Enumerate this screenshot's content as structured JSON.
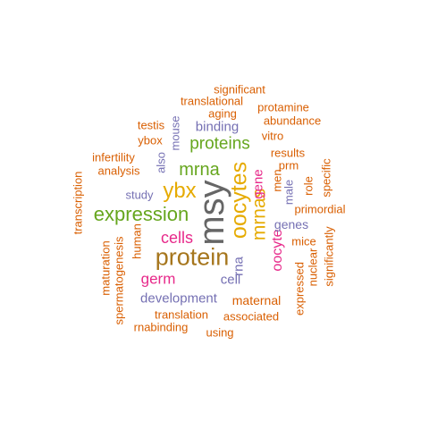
{
  "palette": {
    "orange": "#d95f02",
    "purple": "#7570b3",
    "magenta": "#e7298a",
    "green": "#66a61e",
    "gold": "#e6ab02",
    "brown": "#a6761d",
    "gray": "#666666"
  },
  "words": [
    {
      "text": "msy",
      "color": "gray",
      "vertical": true
    },
    {
      "text": "protein",
      "color": "brown",
      "vertical": false
    },
    {
      "text": "oocytes",
      "color": "gold",
      "vertical": true
    },
    {
      "text": "expression",
      "color": "green",
      "vertical": false
    },
    {
      "text": "ybx",
      "color": "gold",
      "vertical": false
    },
    {
      "text": "mrna",
      "color": "green",
      "vertical": false
    },
    {
      "text": "mrnas",
      "color": "gold",
      "vertical": true
    },
    {
      "text": "proteins",
      "color": "green",
      "vertical": false
    },
    {
      "text": "cells",
      "color": "magenta",
      "vertical": false
    },
    {
      "text": "oocyte",
      "color": "magenta",
      "vertical": true
    },
    {
      "text": "germ",
      "color": "magenta",
      "vertical": false
    },
    {
      "text": "gene",
      "color": "magenta",
      "vertical": true
    },
    {
      "text": "cell",
      "color": "purple",
      "vertical": false
    },
    {
      "text": "development",
      "color": "purple",
      "vertical": false
    },
    {
      "text": "rna",
      "color": "purple",
      "vertical": true
    },
    {
      "text": "genes",
      "color": "purple",
      "vertical": false
    },
    {
      "text": "binding",
      "color": "purple",
      "vertical": false
    },
    {
      "text": "mouse",
      "color": "purple",
      "vertical": true
    },
    {
      "text": "also",
      "color": "purple",
      "vertical": true
    },
    {
      "text": "study",
      "color": "purple",
      "vertical": false
    },
    {
      "text": "male",
      "color": "purple",
      "vertical": true
    },
    {
      "text": "maternal",
      "color": "orange",
      "vertical": false
    },
    {
      "text": "translation",
      "color": "orange",
      "vertical": false
    },
    {
      "text": "associated",
      "color": "orange",
      "vertical": false
    },
    {
      "text": "rnabinding",
      "color": "orange",
      "vertical": false
    },
    {
      "text": "using",
      "color": "orange",
      "vertical": false
    },
    {
      "text": "expressed",
      "color": "orange",
      "vertical": true
    },
    {
      "text": "nuclear",
      "color": "orange",
      "vertical": true
    },
    {
      "text": "significantly",
      "color": "orange",
      "vertical": true
    },
    {
      "text": "mice",
      "color": "orange",
      "vertical": false
    },
    {
      "text": "primordial",
      "color": "orange",
      "vertical": false
    },
    {
      "text": "role",
      "color": "orange",
      "vertical": true
    },
    {
      "text": "specific",
      "color": "orange",
      "vertical": true
    },
    {
      "text": "men",
      "color": "orange",
      "vertical": true
    },
    {
      "text": "prm",
      "color": "orange",
      "vertical": false
    },
    {
      "text": "results",
      "color": "orange",
      "vertical": false
    },
    {
      "text": "vitro",
      "color": "orange",
      "vertical": false
    },
    {
      "text": "abundance",
      "color": "orange",
      "vertical": false
    },
    {
      "text": "protamine",
      "color": "orange",
      "vertical": false
    },
    {
      "text": "significant",
      "color": "orange",
      "vertical": false
    },
    {
      "text": "translational",
      "color": "orange",
      "vertical": false
    },
    {
      "text": "aging",
      "color": "orange",
      "vertical": false
    },
    {
      "text": "testis",
      "color": "orange",
      "vertical": false
    },
    {
      "text": "ybox",
      "color": "orange",
      "vertical": false
    },
    {
      "text": "infertility",
      "color": "orange",
      "vertical": false
    },
    {
      "text": "analysis",
      "color": "orange",
      "vertical": false
    },
    {
      "text": "transcription",
      "color": "orange",
      "vertical": true
    },
    {
      "text": "maturation",
      "color": "orange",
      "vertical": true
    },
    {
      "text": "spermatogenesis",
      "color": "orange",
      "vertical": true
    },
    {
      "text": "human",
      "color": "orange",
      "vertical": true
    }
  ]
}
